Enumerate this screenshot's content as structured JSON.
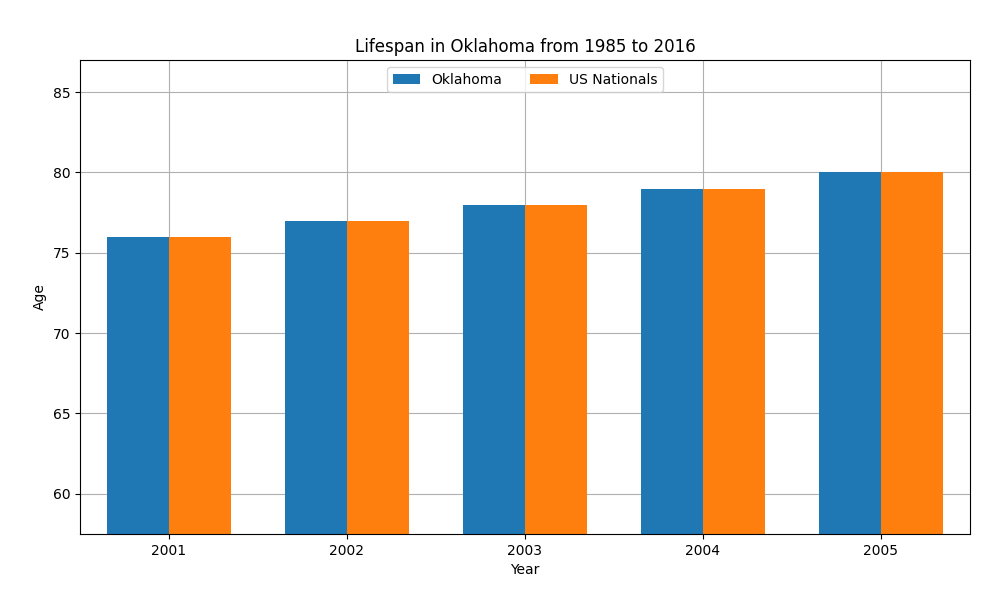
{
  "chart_data": {
    "type": "bar",
    "title": "Lifespan in Oklahoma from 1985 to 2016",
    "x_label": "Year",
    "y_label": "Age",
    "categories": [
      "2001",
      "2002",
      "2003",
      "2004",
      "2005"
    ],
    "series": [
      {
        "name": "Oklahoma",
        "values": [
          76.0,
          77.0,
          78.0,
          79.0,
          80.0
        ]
      },
      {
        "name": "US Nationals",
        "values": [
          76.0,
          77.0,
          78.0,
          79.0,
          80.0
        ]
      }
    ],
    "ylim": [
      57.5,
      87
    ],
    "yticks": [
      60,
      65,
      70,
      75,
      80,
      85
    ],
    "grid": true,
    "legend": "upper center"
  }
}
